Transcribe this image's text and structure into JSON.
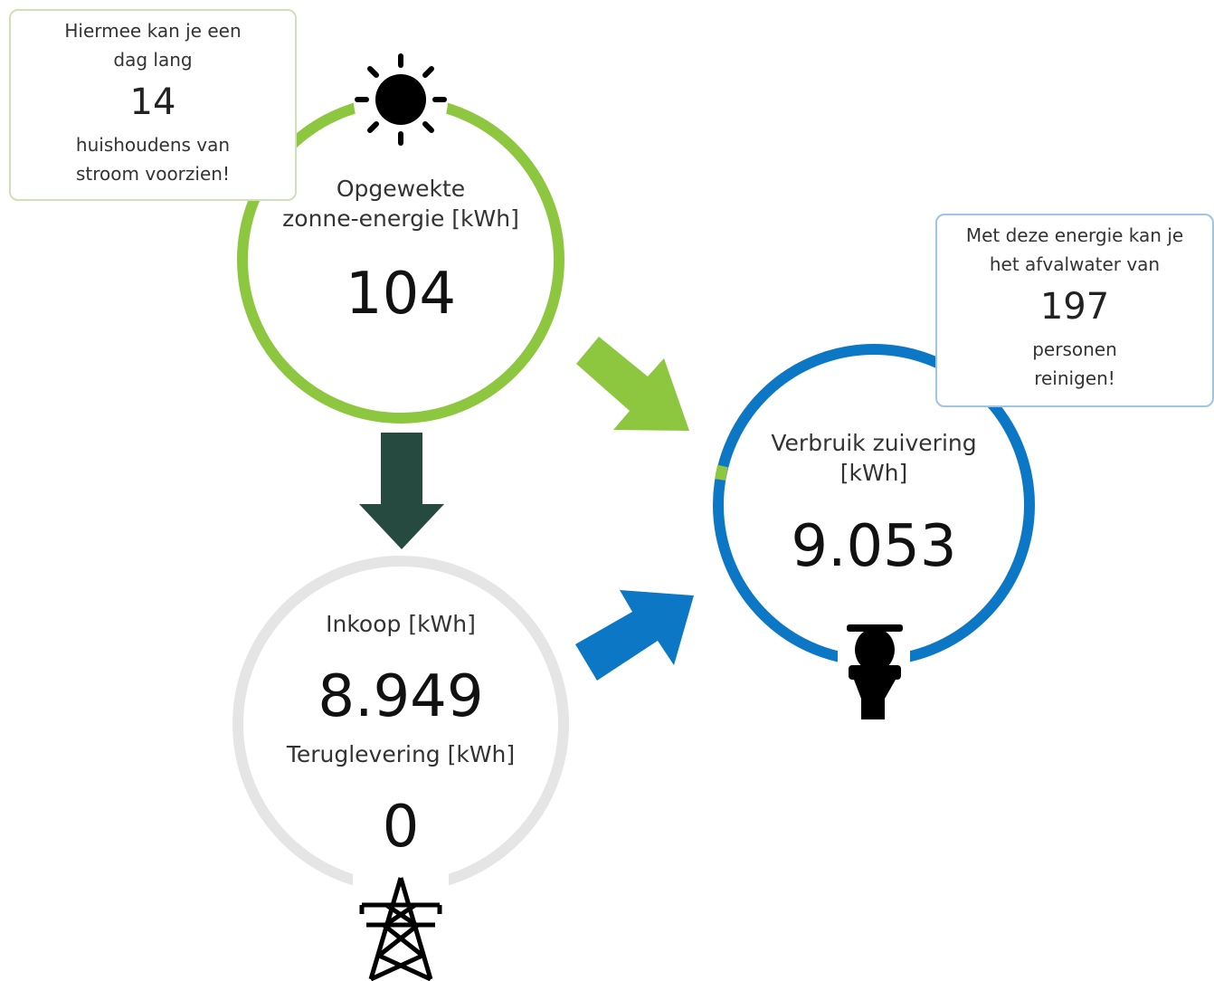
{
  "solar": {
    "label_lines": [
      "Opgewekte",
      "zonne-energie [kWh]"
    ],
    "value": "104"
  },
  "solar_note": {
    "lines_before": [
      "Hiermee kan je een",
      "dag lang"
    ],
    "value": "14",
    "lines_after": [
      "huishoudens van",
      "stroom voorzien!"
    ]
  },
  "consumption": {
    "label_lines": [
      "Verbruik zuivering",
      "[kWh]"
    ],
    "value": "9.053"
  },
  "consumption_note": {
    "lines_before": [
      "Met deze energie kan je",
      "het afvalwater van"
    ],
    "value": "197",
    "lines_after": [
      "personen",
      "reinigen!"
    ]
  },
  "grid": {
    "purchase_label": "Inkoop [kWh]",
    "purchase_value": "8.949",
    "return_label": "Teruglevering [kWh]",
    "return_value": "0"
  }
}
